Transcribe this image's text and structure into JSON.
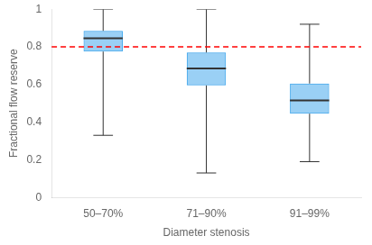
{
  "chart_data": {
    "type": "box",
    "categories": [
      "50–70%",
      "71–90%",
      "91–99%"
    ],
    "boxes": [
      {
        "whislo": 0.33,
        "q1": 0.775,
        "med": 0.845,
        "q3": 0.885,
        "whishi": 1.0
      },
      {
        "whislo": 0.13,
        "q1": 0.595,
        "med": 0.685,
        "q3": 0.77,
        "whishi": 1.0
      },
      {
        "whislo": 0.19,
        "q1": 0.445,
        "med": 0.515,
        "q3": 0.605,
        "whishi": 0.92
      }
    ],
    "xlabel": "Diameter stenosis",
    "ylabel": "Fractional flow reserve",
    "ylim": [
      0,
      1.0
    ],
    "yticks": [
      0,
      0.2,
      0.4,
      0.6,
      0.8,
      1
    ],
    "hline": {
      "value": 0.8,
      "color": "#ff0000",
      "line_style": "dashed"
    },
    "grid": false
  }
}
